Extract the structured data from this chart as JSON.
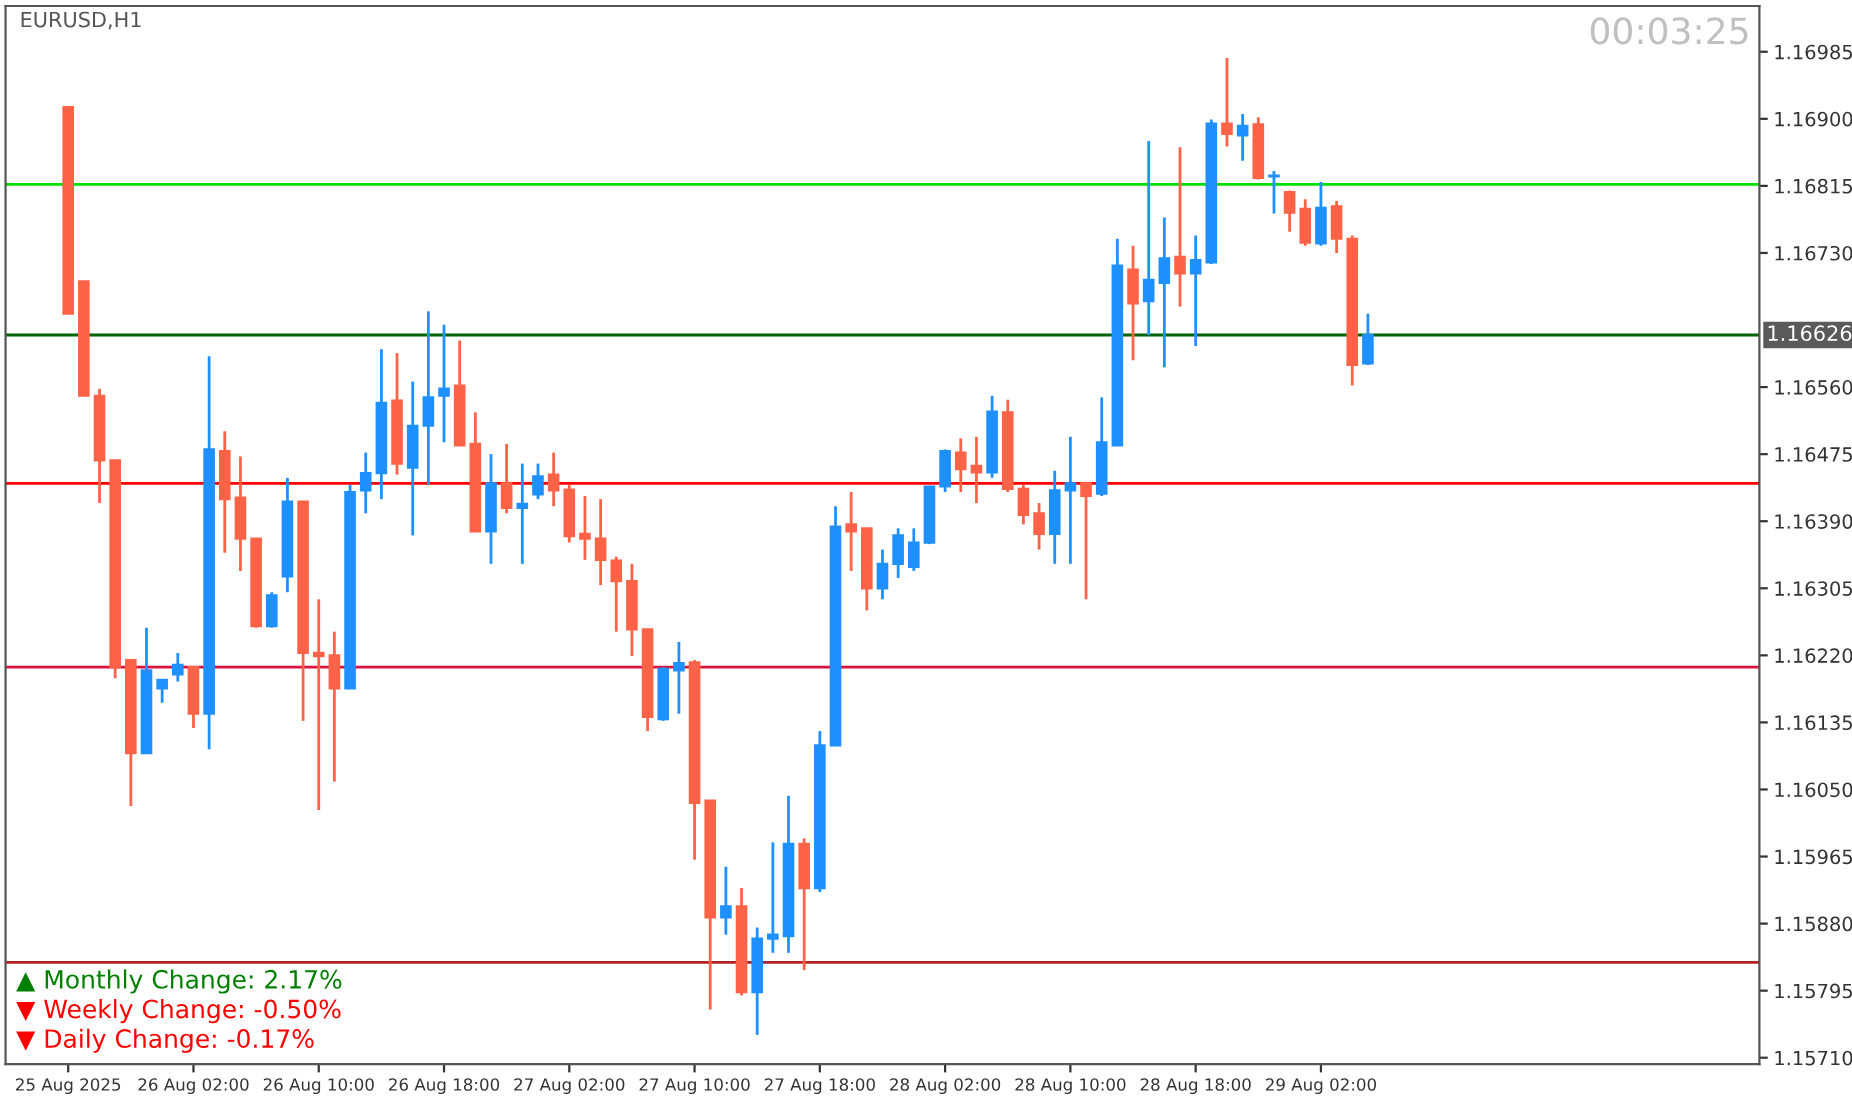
{
  "chart_data": {
    "type": "candlestick",
    "title": "EURUSD,H1",
    "x": [
      "2025-08-25T18:00",
      "2025-08-25T19:00",
      "2025-08-25T20:00",
      "2025-08-25T21:00",
      "2025-08-25T22:00",
      "2025-08-25T23:00",
      "2025-08-26T00:00",
      "2025-08-26T01:00",
      "2025-08-26T02:00",
      "2025-08-26T03:00",
      "2025-08-26T04:00",
      "2025-08-26T05:00",
      "2025-08-26T06:00",
      "2025-08-26T07:00",
      "2025-08-26T08:00",
      "2025-08-26T09:00",
      "2025-08-26T10:00",
      "2025-08-26T11:00",
      "2025-08-26T12:00",
      "2025-08-26T13:00",
      "2025-08-26T14:00",
      "2025-08-26T15:00",
      "2025-08-26T16:00",
      "2025-08-26T17:00",
      "2025-08-26T18:00",
      "2025-08-26T19:00",
      "2025-08-26T20:00",
      "2025-08-26T21:00",
      "2025-08-26T22:00",
      "2025-08-26T23:00",
      "2025-08-27T00:00",
      "2025-08-27T01:00",
      "2025-08-27T02:00",
      "2025-08-27T03:00",
      "2025-08-27T04:00",
      "2025-08-27T05:00",
      "2025-08-27T06:00",
      "2025-08-27T07:00",
      "2025-08-27T08:00",
      "2025-08-27T09:00",
      "2025-08-27T10:00",
      "2025-08-27T11:00",
      "2025-08-27T12:00",
      "2025-08-27T13:00",
      "2025-08-27T14:00",
      "2025-08-27T15:00",
      "2025-08-27T16:00",
      "2025-08-27T17:00",
      "2025-08-27T18:00",
      "2025-08-27T19:00",
      "2025-08-27T20:00",
      "2025-08-27T21:00",
      "2025-08-27T22:00",
      "2025-08-27T23:00",
      "2025-08-28T00:00",
      "2025-08-28T01:00",
      "2025-08-28T02:00",
      "2025-08-28T03:00",
      "2025-08-28T04:00",
      "2025-08-28T05:00",
      "2025-08-28T06:00",
      "2025-08-28T07:00",
      "2025-08-28T08:00",
      "2025-08-28T09:00",
      "2025-08-28T10:00",
      "2025-08-28T11:00",
      "2025-08-28T12:00",
      "2025-08-28T13:00",
      "2025-08-28T14:00",
      "2025-08-28T15:00",
      "2025-08-28T16:00",
      "2025-08-28T17:00",
      "2025-08-28T18:00",
      "2025-08-28T19:00",
      "2025-08-28T20:00",
      "2025-08-28T21:00",
      "2025-08-28T22:00",
      "2025-08-28T23:00",
      "2025-08-29T00:00",
      "2025-08-29T01:00",
      "2025-08-29T02:00",
      "2025-08-29T03:00",
      "2025-08-29T04:00",
      "2025-08-29T05:00"
    ],
    "ohlc": [
      [
        1.16915,
        1.16915,
        1.16653,
        1.16653
      ],
      [
        1.16694,
        1.16694,
        1.16549,
        1.16549
      ],
      [
        1.16549,
        1.16558,
        1.16413,
        1.16467
      ],
      [
        1.16467,
        1.16467,
        1.16191,
        1.16205
      ],
      [
        1.16214,
        1.16214,
        1.16029,
        1.16096
      ],
      [
        1.16096,
        1.16255,
        1.16096,
        1.16201
      ],
      [
        1.16178,
        1.16189,
        1.1616,
        1.16189
      ],
      [
        1.16196,
        1.16223,
        1.16187,
        1.16208
      ],
      [
        1.16205,
        1.16205,
        1.16128,
        1.16146
      ],
      [
        1.16146,
        1.16599,
        1.16101,
        1.16481
      ],
      [
        1.16479,
        1.16504,
        1.1635,
        1.16418
      ],
      [
        1.1642,
        1.16472,
        1.16327,
        1.16368
      ],
      [
        1.16368,
        1.16368,
        1.16255,
        1.16257
      ],
      [
        1.16257,
        1.163,
        1.16255,
        1.16296
      ],
      [
        1.1632,
        1.16445,
        1.163,
        1.16415
      ],
      [
        1.16415,
        1.16415,
        1.16137,
        1.16223
      ],
      [
        1.16223,
        1.16291,
        1.16024,
        1.16219
      ],
      [
        1.1622,
        1.1625,
        1.1606,
        1.16178
      ],
      [
        1.16178,
        1.16436,
        1.16178,
        1.16427
      ],
      [
        1.16429,
        1.16477,
        1.164,
        1.16451
      ],
      [
        1.16451,
        1.16608,
        1.16418,
        1.1654
      ],
      [
        1.16543,
        1.16603,
        1.16449,
        1.16463
      ],
      [
        1.16458,
        1.16567,
        1.16372,
        1.16511
      ],
      [
        1.16511,
        1.16656,
        1.16436,
        1.16547
      ],
      [
        1.16549,
        1.16639,
        1.1649,
        1.16558
      ],
      [
        1.16562,
        1.16619,
        1.16486,
        1.16486
      ],
      [
        1.16488,
        1.16528,
        1.16377,
        1.16377
      ],
      [
        1.16377,
        1.16475,
        1.16336,
        1.16438
      ],
      [
        1.16438,
        1.16488,
        1.164,
        1.16407
      ],
      [
        1.16407,
        1.16463,
        1.16336,
        1.16412
      ],
      [
        1.16424,
        1.16463,
        1.16418,
        1.16447
      ],
      [
        1.16449,
        1.16477,
        1.16409,
        1.16429
      ],
      [
        1.1643,
        1.16436,
        1.16363,
        1.16371
      ],
      [
        1.16374,
        1.16422,
        1.16341,
        1.16368
      ],
      [
        1.16368,
        1.16418,
        1.16309,
        1.16341
      ],
      [
        1.1634,
        1.16345,
        1.1625,
        1.16314
      ],
      [
        1.16314,
        1.16336,
        1.16219,
        1.16253
      ],
      [
        1.16253,
        1.16253,
        1.16124,
        1.16142
      ],
      [
        1.16139,
        1.16205,
        1.16137,
        1.16203
      ],
      [
        1.16201,
        1.16237,
        1.16146,
        1.1621
      ],
      [
        1.16211,
        1.16214,
        1.15961,
        1.16033
      ],
      [
        1.16036,
        1.16036,
        1.15771,
        1.15888
      ],
      [
        1.15888,
        1.15952,
        1.15866,
        1.15902
      ],
      [
        1.15902,
        1.15925,
        1.15789,
        1.15793
      ],
      [
        1.15793,
        1.15875,
        1.15739,
        1.15861
      ],
      [
        1.15861,
        1.15983,
        1.15843,
        1.15866
      ],
      [
        1.15864,
        1.16042,
        1.15843,
        1.15981
      ],
      [
        1.15981,
        1.15988,
        1.15821,
        1.15925
      ],
      [
        1.15925,
        1.16124,
        1.1592,
        1.16106
      ],
      [
        1.16106,
        1.16409,
        1.16106,
        1.16383
      ],
      [
        1.16386,
        1.16427,
        1.16327,
        1.16377
      ],
      [
        1.16381,
        1.16381,
        1.16277,
        1.16305
      ],
      [
        1.16305,
        1.16354,
        1.16291,
        1.16336
      ],
      [
        1.16336,
        1.16381,
        1.16318,
        1.16372
      ],
      [
        1.16332,
        1.16381,
        1.16327,
        1.16363
      ],
      [
        1.16363,
        1.16434,
        1.16361,
        1.16434
      ],
      [
        1.16434,
        1.16481,
        1.16427,
        1.16479
      ],
      [
        1.16477,
        1.16495,
        1.16427,
        1.16456
      ],
      [
        1.1646,
        1.16497,
        1.16413,
        1.16452
      ],
      [
        1.16452,
        1.16549,
        1.16445,
        1.16529
      ],
      [
        1.16528,
        1.16544,
        1.16427,
        1.16431
      ],
      [
        1.16431,
        1.16436,
        1.16386,
        1.16398
      ],
      [
        1.164,
        1.16413,
        1.16354,
        1.16374
      ],
      [
        1.16374,
        1.16454,
        1.16336,
        1.16429
      ],
      [
        1.16429,
        1.16497,
        1.16336,
        1.16438
      ],
      [
        1.16438,
        1.1644,
        1.16291,
        1.16422
      ],
      [
        1.16425,
        1.16547,
        1.16422,
        1.1649
      ],
      [
        1.16486,
        1.16748,
        1.16486,
        1.16714
      ],
      [
        1.16709,
        1.16739,
        1.16594,
        1.16666
      ],
      [
        1.16669,
        1.16872,
        1.16626,
        1.16696
      ],
      [
        1.16692,
        1.16775,
        1.16585,
        1.16723
      ],
      [
        1.16725,
        1.16864,
        1.16662,
        1.16704
      ],
      [
        1.16704,
        1.16752,
        1.16612,
        1.16721
      ],
      [
        1.16718,
        1.16899,
        1.16716,
        1.16894
      ],
      [
        1.16894,
        1.16977,
        1.16865,
        1.16881
      ],
      [
        1.16879,
        1.16906,
        1.16847,
        1.16891
      ],
      [
        1.16893,
        1.16902,
        1.16823,
        1.16825
      ],
      [
        1.16827,
        1.16834,
        1.1678,
        1.16828
      ],
      [
        1.16807,
        1.16809,
        1.16757,
        1.16781
      ],
      [
        1.16786,
        1.16798,
        1.16739,
        1.16743
      ],
      [
        1.16742,
        1.1682,
        1.16739,
        1.16787
      ],
      [
        1.16789,
        1.16796,
        1.1673,
        1.16748
      ],
      [
        1.16748,
        1.16752,
        1.16562,
        1.16588
      ],
      [
        1.1659,
        1.16653,
        1.16588,
        1.16626
      ]
    ],
    "colors": [
      "#ff6347",
      "#ff6347",
      "#ff6347",
      "#ff6347",
      "#ff6347",
      "#1e90ff",
      "#1e90ff",
      "#1e90ff",
      "#ff6347",
      "#1e90ff",
      "#ff6347",
      "#ff6347",
      "#ff6347",
      "#1e90ff",
      "#1e90ff",
      "#ff6347",
      "#ff6347",
      "#ff6347",
      "#1e90ff",
      "#1e90ff",
      "#1e90ff",
      "#ff6347",
      "#1e90ff",
      "#1e90ff",
      "#1e90ff",
      "#ff6347",
      "#ff6347",
      "#1e90ff",
      "#ff6347",
      "#1e90ff",
      "#1e90ff",
      "#ff6347",
      "#ff6347",
      "#ff6347",
      "#ff6347",
      "#ff6347",
      "#ff6347",
      "#ff6347",
      "#1e90ff",
      "#1e90ff",
      "#ff6347",
      "#ff6347",
      "#1e90ff",
      "#ff6347",
      "#1e90ff",
      "#1e90ff",
      "#1e90ff",
      "#ff6347",
      "#1e90ff",
      "#1e90ff",
      "#ff6347",
      "#ff6347",
      "#1e90ff",
      "#1e90ff",
      "#1e90ff",
      "#1e90ff",
      "#1e90ff",
      "#ff6347",
      "#ff6347",
      "#1e90ff",
      "#ff6347",
      "#ff6347",
      "#ff6347",
      "#1e90ff",
      "#1e90ff",
      "#ff6347",
      "#1e90ff",
      "#1e90ff",
      "#ff6347",
      "#1e90ff",
      "#1e90ff",
      "#ff6347",
      "#1e90ff",
      "#1e90ff",
      "#ff6347",
      "#1e90ff",
      "#ff6347",
      "#1e90ff",
      "#ff6347",
      "#ff6347",
      "#1e90ff",
      "#ff6347",
      "#ff6347",
      "#1e90ff"
    ],
    "xlim": [
      "2025-08-25T14:00",
      "2025-08-30T06:00"
    ],
    "xticks": [
      {
        "value": "2025-08-25T18:00",
        "label": "25 Aug 2025"
      },
      {
        "value": "2025-08-26T02:00",
        "label": "26 Aug 02:00"
      },
      {
        "value": "2025-08-26T10:00",
        "label": "26 Aug 10:00"
      },
      {
        "value": "2025-08-26T18:00",
        "label": "26 Aug 18:00"
      },
      {
        "value": "2025-08-27T02:00",
        "label": "27 Aug 02:00"
      },
      {
        "value": "2025-08-27T10:00",
        "label": "27 Aug 10:00"
      },
      {
        "value": "2025-08-27T18:00",
        "label": "27 Aug 18:00"
      },
      {
        "value": "2025-08-28T02:00",
        "label": "28 Aug 02:00"
      },
      {
        "value": "2025-08-28T10:00",
        "label": "28 Aug 10:00"
      },
      {
        "value": "2025-08-28T18:00",
        "label": "28 Aug 18:00"
      },
      {
        "value": "2025-08-29T02:00",
        "label": "29 Aug 02:00"
      }
    ],
    "ylim": [
      1.15702,
      1.17043
    ],
    "yticks": [
      1.16985,
      {
        "value": 1.169,
        "label": "1.16900"
      },
      1.16815,
      {
        "value": 1.1673,
        "label": "1.16730"
      },
      {
        "value": 1.1656,
        "label": "1.16560"
      },
      1.16475,
      {
        "value": 1.1639,
        "label": "1.16390"
      },
      1.16305,
      {
        "value": 1.1622,
        "label": "1.16220"
      },
      1.16135,
      {
        "value": 1.1605,
        "label": "1.16050"
      },
      1.15965,
      {
        "value": 1.1588,
        "label": "1.15880"
      },
      1.15795,
      {
        "value": 1.1571,
        "label": "1.15710"
      }
    ],
    "ref_lines": [
      {
        "axis": "y",
        "value": 1.16817,
        "color": "#00e000"
      },
      {
        "axis": "y",
        "value": 1.16626,
        "label": "1.16626",
        "color": "#006400"
      },
      {
        "axis": "y",
        "value": 1.16438,
        "color": "#ff0000"
      },
      {
        "axis": "y",
        "value": 1.16205,
        "color": "#dc143c"
      },
      {
        "axis": "y",
        "value": 1.15831,
        "color": "#b22222"
      }
    ],
    "annotations": [
      "00:03:25",
      "▲ Monthly Change: 2.17%",
      "▼ Weekly Change: -0.50%",
      "▼ Daily Change: -0.17%"
    ],
    "grid": false
  }
}
